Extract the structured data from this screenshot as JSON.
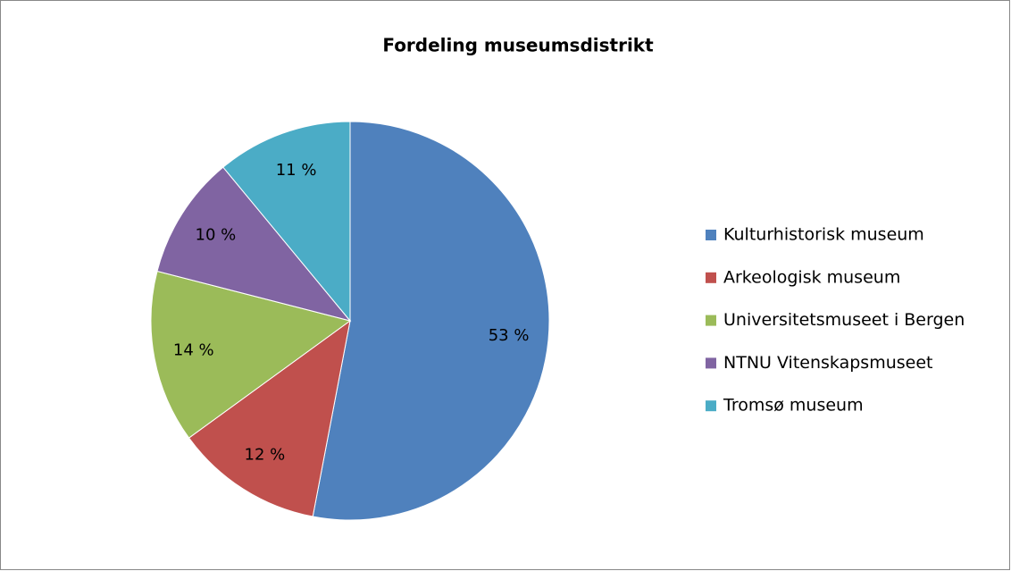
{
  "chart_data": {
    "type": "pie",
    "title": "Fordeling museumsdistrikt",
    "categories": [
      "Kulturhistorisk museum",
      "Arkeologisk museum",
      "Universitetsmuseet i Bergen",
      "NTNU Vitenskapsmuseet",
      "Tromsø museum"
    ],
    "values": [
      53,
      12,
      14,
      10,
      11
    ],
    "value_labels": [
      "53 %",
      "12 %",
      "14 %",
      "10 %",
      "11 %"
    ],
    "colors": [
      "#4f81bd",
      "#c0504d",
      "#9bbb59",
      "#8064a2",
      "#4bacc6"
    ],
    "legend": "right"
  }
}
